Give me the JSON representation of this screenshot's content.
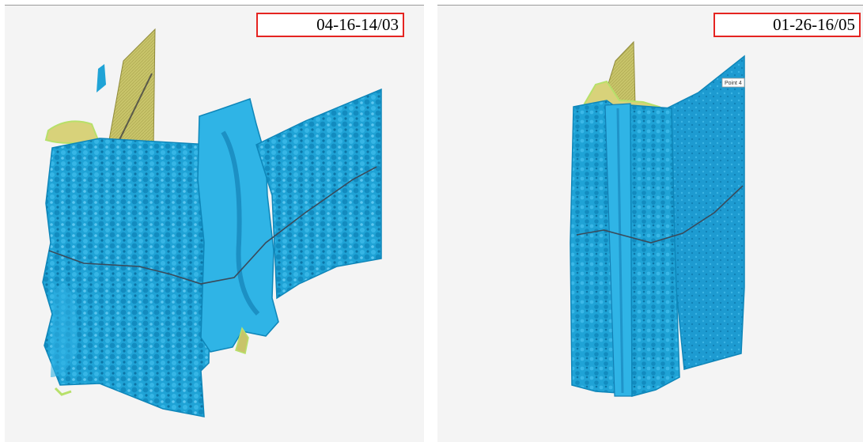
{
  "colors": {
    "background": "#f4f4f4",
    "scan_blue": "#1fa3d6",
    "scan_blue_dark": "#0f7fb3",
    "mesh_yellow": "#c8c46a",
    "edge_green": "#b7e06a",
    "label_border": "#e52421"
  },
  "panels": [
    {
      "date_label": "04-16-14/03"
    },
    {
      "date_label": "01-26-16/05",
      "point_tag": "Point 4"
    }
  ]
}
